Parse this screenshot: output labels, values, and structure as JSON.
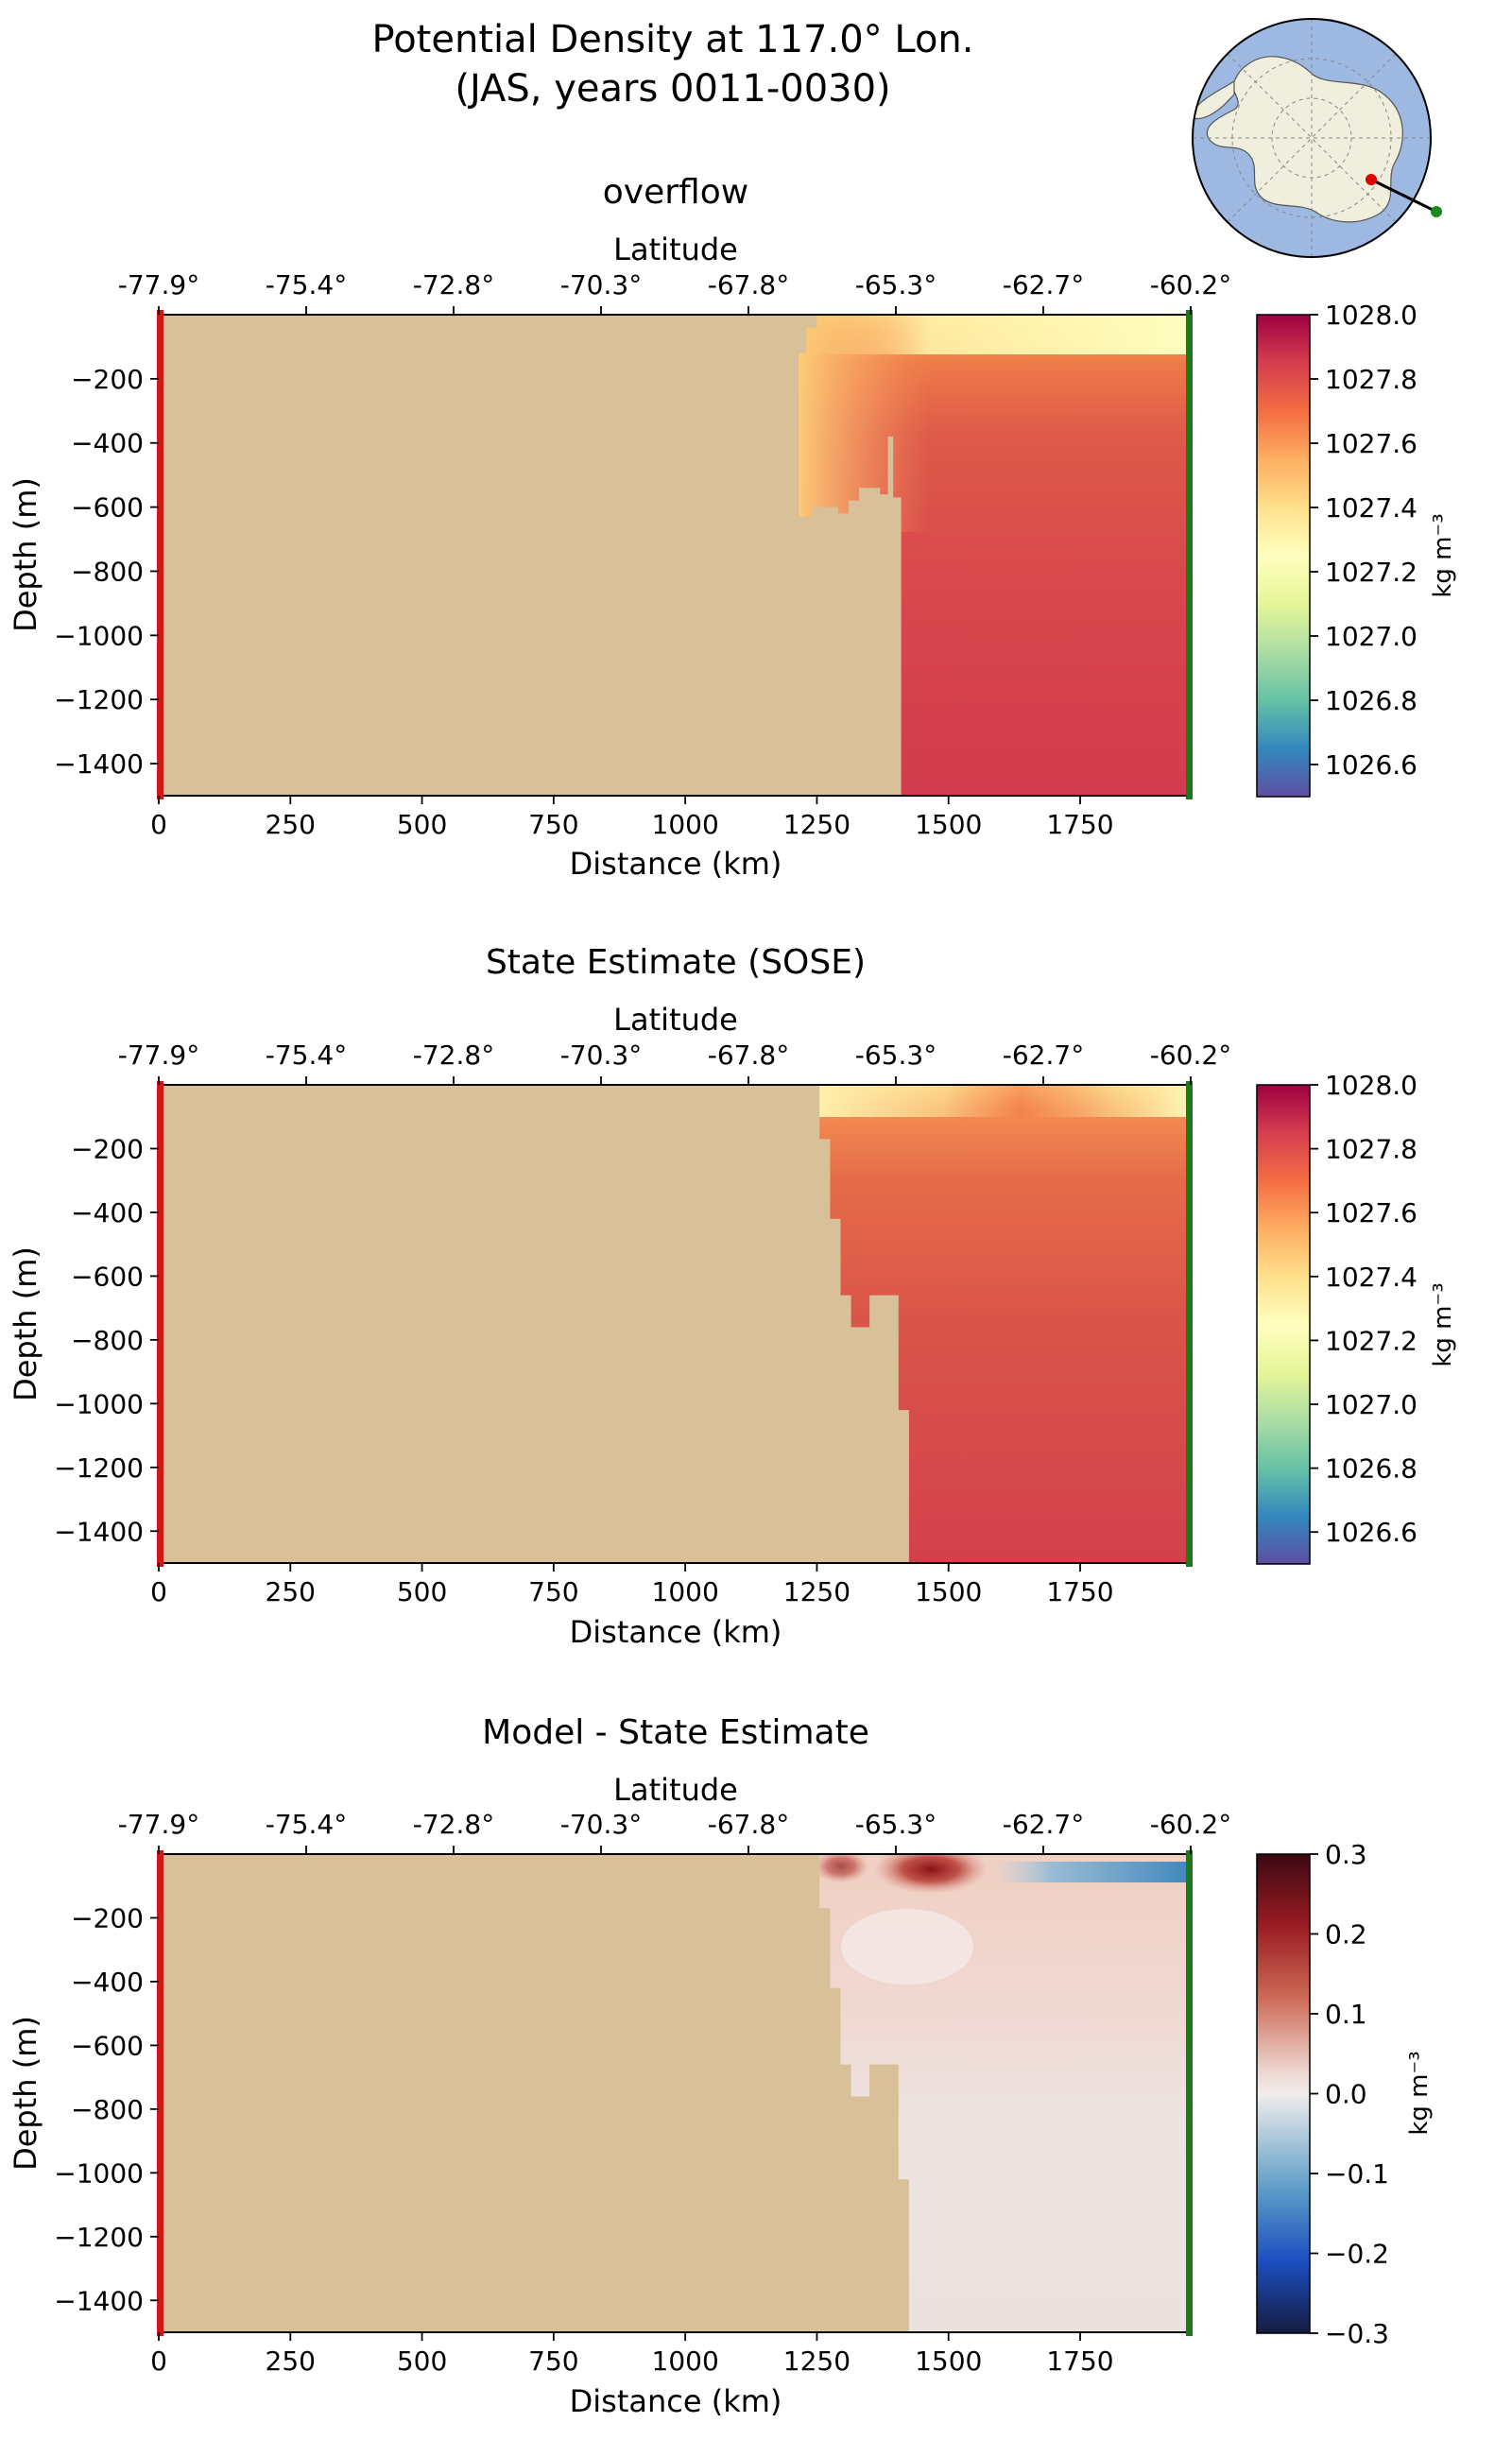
{
  "figure": {
    "title_line1": "Potential Density at 117.0° Lon.",
    "title_line2": "(JAS, years 0011-0030)"
  },
  "colors": {
    "land": "#d8c098",
    "left_marker": "#d01818",
    "right_marker": "#1a7a1a",
    "ocean_map": "#9db9e2",
    "continent_map": "#f0eedc"
  },
  "inset_map": {
    "kind": "south-polar-stereographic",
    "section_line": "black",
    "start_point_color": "red",
    "end_point_color": "green"
  },
  "chart_data": [
    {
      "type": "heatmap",
      "title": "overflow",
      "xlabel": "Distance (km)",
      "ylabel": "Depth (m)",
      "top_axis_label": "Latitude",
      "xlim": [
        0,
        1960
      ],
      "ylim": [
        -1500,
        0
      ],
      "x_ticks": [
        "0",
        "250",
        "500",
        "750",
        "1000",
        "1250",
        "1500",
        "1750"
      ],
      "y_ticks": [
        "−200",
        "−400",
        "−600",
        "−800",
        "−1000",
        "−1200",
        "−1400"
      ],
      "top_ticks": [
        "-77.9°",
        "-75.4°",
        "-72.8°",
        "-70.3°",
        "-67.8°",
        "-65.3°",
        "-62.7°",
        "-60.2°"
      ],
      "colorbar": {
        "label": "kg m⁻³",
        "colormap": "Spectral_r",
        "range": [
          1026.5,
          1028.0
        ],
        "ticks": [
          "1028.0",
          "1027.8",
          "1027.6",
          "1027.4",
          "1027.2",
          "1027.0",
          "1026.8",
          "1026.6"
        ]
      },
      "land_boundary_km_vs_depth": [
        [
          0,
          0
        ],
        [
          1250,
          0
        ],
        [
          1250,
          -40
        ],
        [
          1230,
          -40
        ],
        [
          1230,
          -120
        ],
        [
          1215,
          -120
        ],
        [
          1215,
          -630
        ],
        [
          1240,
          -630
        ],
        [
          1240,
          -600
        ],
        [
          1290,
          -600
        ],
        [
          1290,
          -620
        ],
        [
          1310,
          -620
        ],
        [
          1310,
          -580
        ],
        [
          1330,
          -580
        ],
        [
          1330,
          -540
        ],
        [
          1370,
          -540
        ],
        [
          1370,
          -560
        ],
        [
          1385,
          -560
        ],
        [
          1385,
          -380
        ],
        [
          1395,
          -380
        ],
        [
          1395,
          -570
        ],
        [
          1410,
          -570
        ],
        [
          1410,
          -1500
        ],
        [
          0,
          -1500
        ]
      ],
      "ocean_field_description": "surface layer ~1027.3 near shelf, increasing with depth to ~1027.85 at depth",
      "density_samples": [
        {
          "distance_km": 1300,
          "depth_m": -10,
          "value": 1027.3
        },
        {
          "distance_km": 1700,
          "depth_m": -10,
          "value": 1027.3
        },
        {
          "distance_km": 1900,
          "depth_m": -20,
          "value": 1027.25
        },
        {
          "distance_km": 1500,
          "depth_m": -150,
          "value": 1027.6
        },
        {
          "distance_km": 1300,
          "depth_m": -450,
          "value": 1027.7
        },
        {
          "distance_km": 1700,
          "depth_m": -600,
          "value": 1027.78
        },
        {
          "distance_km": 1700,
          "depth_m": -1400,
          "value": 1027.85
        }
      ]
    },
    {
      "type": "heatmap",
      "title": "State Estimate (SOSE)",
      "xlabel": "Distance (km)",
      "ylabel": "Depth (m)",
      "top_axis_label": "Latitude",
      "xlim": [
        0,
        1960
      ],
      "ylim": [
        -1500,
        0
      ],
      "x_ticks": [
        "0",
        "250",
        "500",
        "750",
        "1000",
        "1250",
        "1500",
        "1750"
      ],
      "y_ticks": [
        "−200",
        "−400",
        "−600",
        "−800",
        "−1000",
        "−1200",
        "−1400"
      ],
      "top_ticks": [
        "-77.9°",
        "-75.4°",
        "-72.8°",
        "-70.3°",
        "-67.8°",
        "-65.3°",
        "-62.7°",
        "-60.2°"
      ],
      "colorbar": {
        "label": "kg m⁻³",
        "colormap": "Spectral_r",
        "range": [
          1026.5,
          1028.0
        ],
        "ticks": [
          "1028.0",
          "1027.8",
          "1027.6",
          "1027.4",
          "1027.2",
          "1027.0",
          "1026.8",
          "1026.6"
        ]
      },
      "land_boundary_km_vs_depth": [
        [
          0,
          0
        ],
        [
          1255,
          0
        ],
        [
          1255,
          -170
        ],
        [
          1275,
          -170
        ],
        [
          1275,
          -420
        ],
        [
          1295,
          -420
        ],
        [
          1295,
          -660
        ],
        [
          1315,
          -660
        ],
        [
          1315,
          -760
        ],
        [
          1350,
          -760
        ],
        [
          1350,
          -660
        ],
        [
          1405,
          -660
        ],
        [
          1405,
          -1020
        ],
        [
          1425,
          -1020
        ],
        [
          1425,
          -1500
        ],
        [
          0,
          -1500
        ]
      ],
      "density_samples": [
        {
          "distance_km": 1300,
          "depth_m": -10,
          "value": 1027.25
        },
        {
          "distance_km": 1900,
          "depth_m": -10,
          "value": 1027.3
        },
        {
          "distance_km": 1650,
          "depth_m": -30,
          "value": 1027.6
        },
        {
          "distance_km": 1500,
          "depth_m": -300,
          "value": 1027.68
        },
        {
          "distance_km": 1700,
          "depth_m": -800,
          "value": 1027.78
        },
        {
          "distance_km": 1700,
          "depth_m": -1400,
          "value": 1027.85
        }
      ]
    },
    {
      "type": "heatmap",
      "title": "Model - State Estimate",
      "xlabel": "Distance (km)",
      "ylabel": "Depth (m)",
      "top_axis_label": "Latitude",
      "xlim": [
        0,
        1960
      ],
      "ylim": [
        -1500,
        0
      ],
      "x_ticks": [
        "0",
        "250",
        "500",
        "750",
        "1000",
        "1250",
        "1500",
        "1750"
      ],
      "y_ticks": [
        "−200",
        "−400",
        "−600",
        "−800",
        "−1000",
        "−1200",
        "−1400"
      ],
      "top_ticks": [
        "-77.9°",
        "-75.4°",
        "-72.8°",
        "-70.3°",
        "-67.8°",
        "-65.3°",
        "-62.7°",
        "-60.2°"
      ],
      "colorbar": {
        "label": "kg m⁻³",
        "colormap": "RdBu_r (balance)",
        "range": [
          -0.3,
          0.3
        ],
        "ticks": [
          "0.3",
          "0.2",
          "0.1",
          "0.0",
          "−0.1",
          "−0.2",
          "−0.3"
        ]
      },
      "land_boundary_km_vs_depth": [
        [
          0,
          0
        ],
        [
          1255,
          0
        ],
        [
          1255,
          -170
        ],
        [
          1275,
          -170
        ],
        [
          1275,
          -420
        ],
        [
          1295,
          -420
        ],
        [
          1295,
          -660
        ],
        [
          1315,
          -660
        ],
        [
          1315,
          -760
        ],
        [
          1350,
          -760
        ],
        [
          1350,
          -660
        ],
        [
          1405,
          -660
        ],
        [
          1405,
          -1020
        ],
        [
          1425,
          -1020
        ],
        [
          1425,
          -1500
        ],
        [
          0,
          -1500
        ]
      ],
      "difference_samples": [
        {
          "distance_km": 1400,
          "depth_m": -20,
          "value": 0.25
        },
        {
          "distance_km": 1750,
          "depth_m": -40,
          "value": -0.12
        },
        {
          "distance_km": 1600,
          "depth_m": -300,
          "value": 0.05
        },
        {
          "distance_km": 1700,
          "depth_m": -1200,
          "value": 0.02
        }
      ]
    }
  ]
}
